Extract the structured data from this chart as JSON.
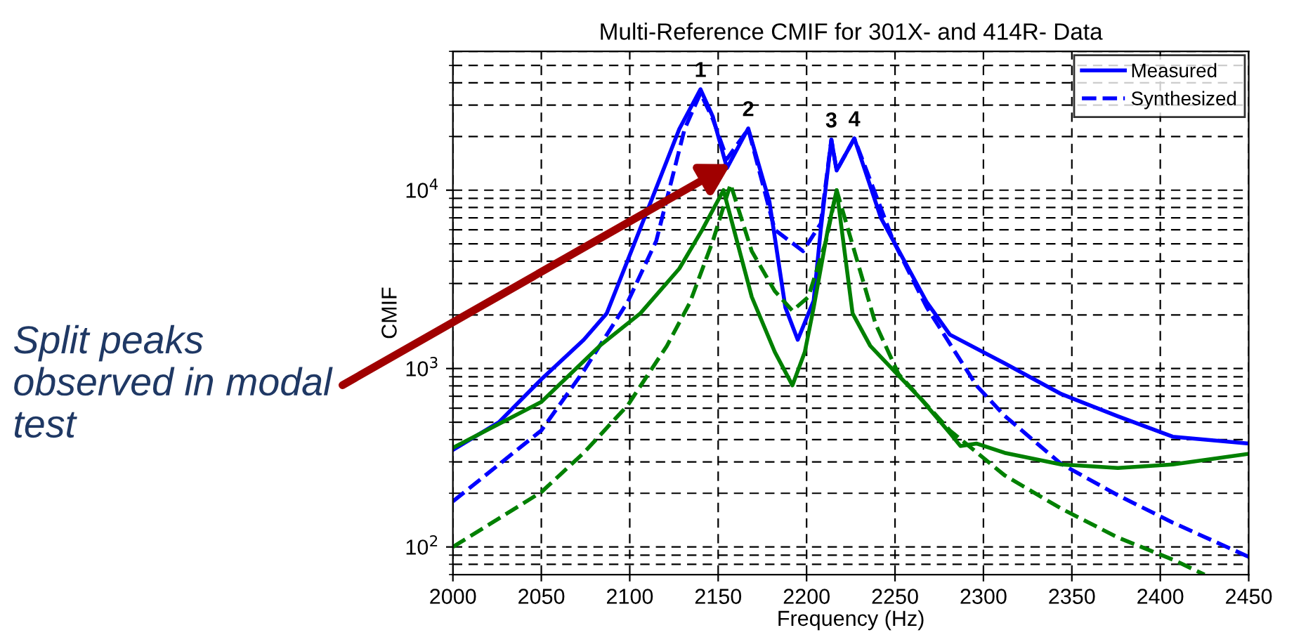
{
  "chart_data": {
    "type": "line",
    "title": "Multi-Reference CMIF for 301X- and 414R- Data",
    "xlabel": "Frequency (Hz)",
    "ylabel": "CMIF",
    "log": "y",
    "grid": true,
    "legend": "top right",
    "xlim": [
      2000,
      2450
    ],
    "xticks": [
      2000,
      2050,
      2100,
      2150,
      2200,
      2250,
      2300,
      2350,
      2400,
      2450
    ],
    "ylim": [
      70,
      60000
    ],
    "yticks": [
      {
        "value": 100,
        "label": "10$^{2}$"
      },
      {
        "value": 1000,
        "label": "10$^{3}$"
      },
      {
        "value": 10000,
        "label": "10$^{4}$"
      }
    ],
    "series": [
      {
        "name": "Measured",
        "color": "#0000ff",
        "line_style": "solid",
        "x": [
          2000,
          2026,
          2050,
          2074,
          2087,
          2112,
          2128,
          2140,
          2147,
          2155,
          2167,
          2179,
          2188,
          2195,
          2204,
          2208,
          2214,
          2217,
          2227,
          2242,
          2268,
          2281,
          2312,
          2344,
          2376,
          2407,
          2450
        ],
        "values": [
          350,
          500,
          870,
          1450,
          2040,
          8650,
          22000,
          36800,
          25800,
          13300,
          22200,
          8600,
          2200,
          1450,
          2400,
          6000,
          19200,
          12900,
          19500,
          7000,
          2350,
          1550,
          1070,
          720,
          540,
          415,
          380
        ]
      },
      {
        "name": "Synthesized",
        "color": "#0000ff",
        "line_style": "dashed",
        "x": [
          2000,
          2050,
          2074,
          2099,
          2115,
          2131,
          2140,
          2147,
          2155,
          2167,
          2182,
          2198,
          2208,
          2214,
          2217,
          2227,
          2249,
          2268,
          2296,
          2312,
          2344,
          2376,
          2407,
          2450
        ],
        "values": [
          180,
          450,
          970,
          2380,
          5200,
          22000,
          35000,
          25000,
          15000,
          22000,
          6000,
          4550,
          6500,
          19200,
          12900,
          19500,
          5200,
          2200,
          805,
          543,
          292,
          195,
          137,
          88
        ]
      },
      {
        "color": "#008000",
        "line_style": "solid",
        "x": [
          2000,
          2050,
          2083,
          2106,
          2128,
          2141,
          2153,
          2169,
          2182,
          2192,
          2199,
          2204,
          2212,
          2217,
          2226,
          2236,
          2265,
          2281,
          2287,
          2296,
          2312,
          2344,
          2376,
          2407,
          2450
        ],
        "values": [
          360,
          650,
          1340,
          2040,
          3630,
          6000,
          10000,
          2520,
          1240,
          805,
          1240,
          2200,
          6000,
          10000,
          2040,
          1340,
          670,
          435,
          368,
          380,
          337,
          290,
          277,
          290,
          333
        ]
      },
      {
        "color": "#008000",
        "line_style": "dashed",
        "x": [
          2000,
          2050,
          2074,
          2099,
          2121,
          2134,
          2147,
          2157,
          2169,
          2182,
          2192,
          2201,
          2211,
          2217,
          2239,
          2252,
          2281,
          2312,
          2344,
          2376,
          2407,
          2425
        ],
        "values": [
          100,
          203,
          337,
          625,
          1340,
          2340,
          5200,
          10800,
          4550,
          2720,
          2110,
          2520,
          5200,
          10000,
          1780,
          930,
          450,
          252,
          164,
          113,
          85,
          70
        ]
      }
    ],
    "annotations": [
      {
        "text": "1",
        "x": 2140,
        "y": 36800
      },
      {
        "text": "2",
        "x": 2167,
        "y": 22200
      },
      {
        "text": "3",
        "x": 2214,
        "y": 19200
      },
      {
        "text": "4",
        "x": 2227,
        "y": 19500
      },
      {
        "text": "Split peaks observed in modal test",
        "x": 2157,
        "y": 14000
      }
    ]
  }
}
